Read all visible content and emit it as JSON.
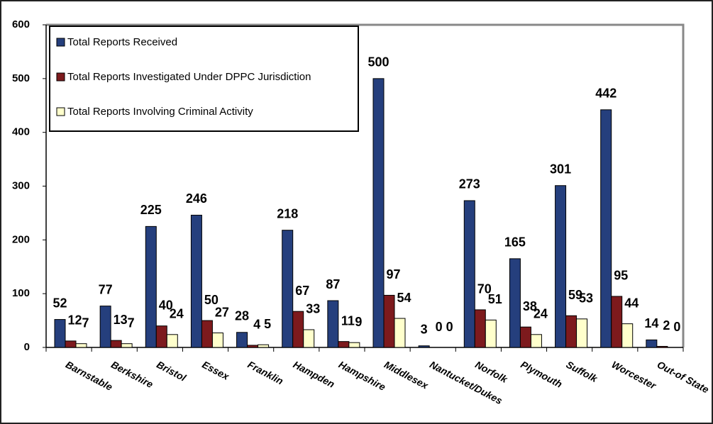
{
  "chart_data": {
    "type": "bar",
    "categories": [
      "Barnstable",
      "Berkshire",
      "Bristol",
      "Essex",
      "Franklin",
      "Hampden",
      "Hampshire",
      "Middlesex",
      "Nantucket/Dukes",
      "Norfolk",
      "Plymouth",
      "Suffolk",
      "Worcester",
      "Out-of State"
    ],
    "series": [
      {
        "name": "Total Reports Received",
        "color": "#253f7d",
        "values": [
          52,
          77,
          225,
          246,
          28,
          218,
          87,
          500,
          3,
          273,
          165,
          301,
          442,
          14
        ]
      },
      {
        "name": "Total Reports Investigated Under DPPC Jurisdiction",
        "color": "#7d1a1d",
        "values": [
          12,
          13,
          40,
          50,
          4,
          67,
          11,
          97,
          0,
          70,
          38,
          59,
          95,
          2
        ]
      },
      {
        "name": "Total Reports Involving Criminal Activity",
        "color": "#ffffcc",
        "values": [
          7,
          7,
          24,
          27,
          5,
          33,
          9,
          54,
          0,
          51,
          24,
          53,
          44,
          0
        ]
      }
    ],
    "ylim": [
      0,
      600
    ],
    "yticks": [
      0,
      100,
      200,
      300,
      400,
      500,
      600
    ]
  }
}
